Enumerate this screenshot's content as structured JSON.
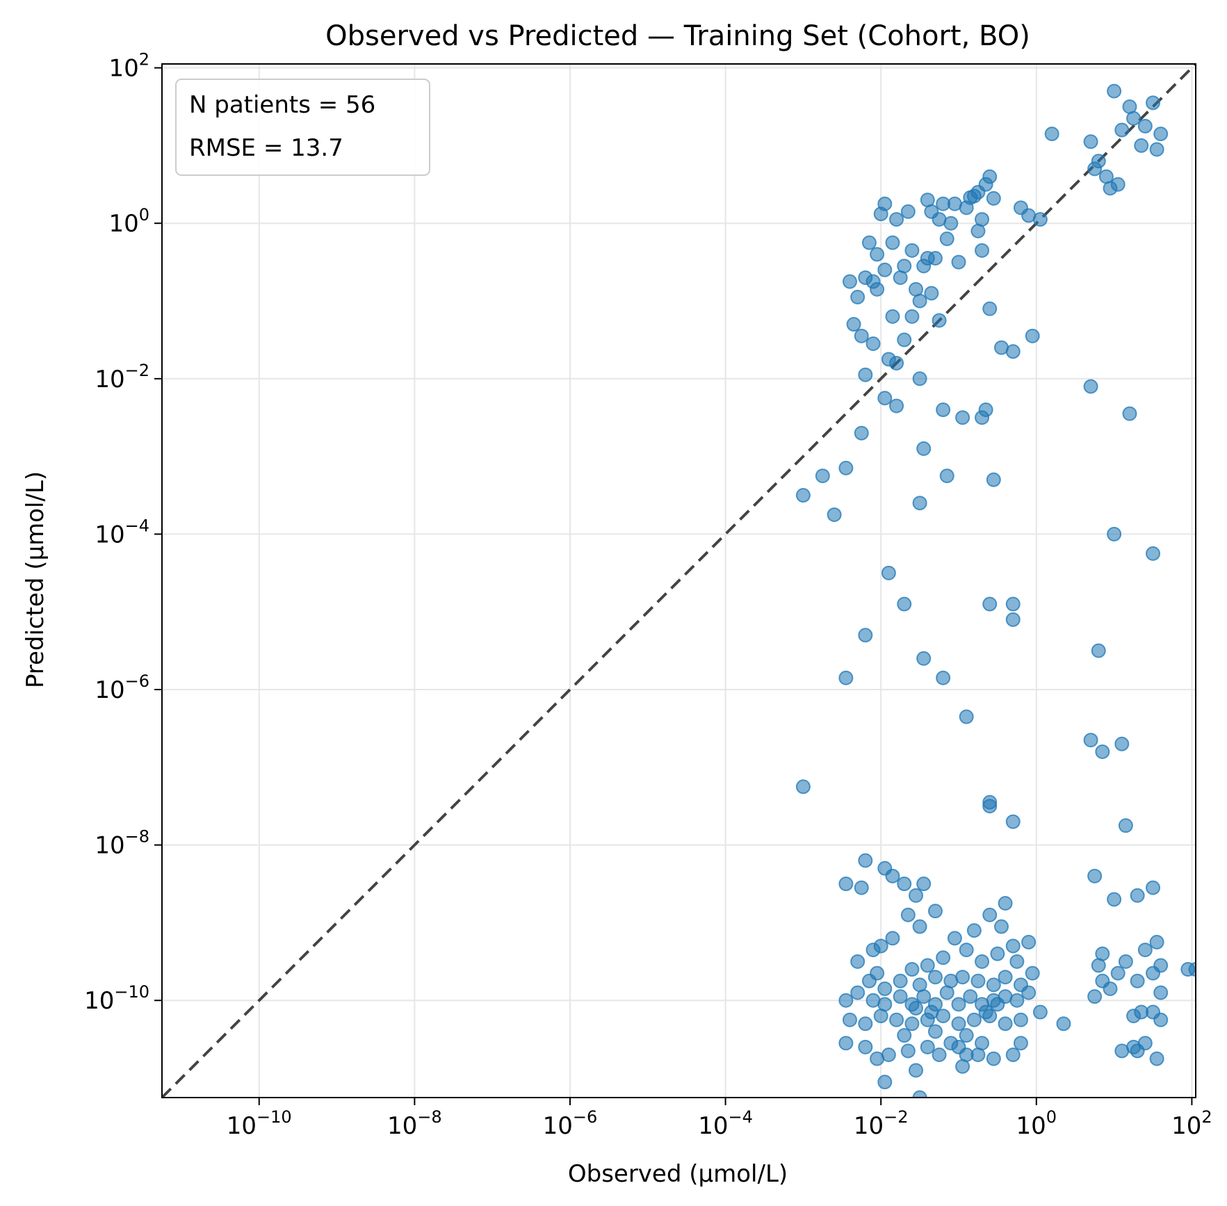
{
  "chart_data": {
    "type": "scatter",
    "title": "Observed vs Predicted — Training Set (Cohort, BO)",
    "xlabel": "Observed (µmol/L)",
    "ylabel": "Predicted (µmol/L)",
    "xscale": "log",
    "yscale": "log",
    "xlim_exp": [
      -11.25,
      2.05
    ],
    "ylim_exp": [
      -11.25,
      2.05
    ],
    "x_ticks_exp": [
      -10,
      -8,
      -6,
      -4,
      -2,
      0,
      2
    ],
    "y_ticks_exp": [
      -10,
      -8,
      -6,
      -4,
      -2,
      0,
      2
    ],
    "grid": true,
    "reference_line": "y = x",
    "point_color": "#1f77b4",
    "reference_line_color": "#444444",
    "annotation": {
      "line1": "N patients = 56",
      "line2": "RMSE = 13.7",
      "placement": "top-left"
    },
    "series": [
      {
        "comment_units": "points are [log10(observed), log10(predicted)]",
        "points": [
          [
            -2.0,
            0.12
          ],
          [
            -1.95,
            0.25
          ],
          [
            -1.8,
            0.05
          ],
          [
            -2.1,
            -0.75
          ],
          [
            -1.7,
            -0.55
          ],
          [
            -2.15,
            -0.25
          ],
          [
            -2.25,
            -1.45
          ],
          [
            -1.85,
            -1.2
          ],
          [
            -1.55,
            -0.85
          ],
          [
            -1.5,
            -1.0
          ],
          [
            -1.4,
            0.3
          ],
          [
            -1.2,
            0.25
          ],
          [
            -0.85,
            0.33
          ],
          [
            -0.8,
            0.35
          ],
          [
            -0.7,
            0.05
          ],
          [
            -0.55,
            0.32
          ],
          [
            -0.75,
            0.4
          ],
          [
            -0.6,
            0.6
          ],
          [
            -0.65,
            0.5
          ],
          [
            -0.9,
            0.2
          ],
          [
            -1.3,
            -0.45
          ],
          [
            -1.1,
            0.0
          ],
          [
            -1.35,
            0.15
          ],
          [
            -0.6,
            -1.1
          ],
          [
            -0.2,
            0.2
          ],
          [
            -0.1,
            0.1
          ],
          [
            0.05,
            0.05
          ],
          [
            0.2,
            1.15
          ],
          [
            -0.3,
            -1.65
          ],
          [
            -0.05,
            -1.45
          ],
          [
            1.0,
            1.7
          ],
          [
            1.2,
            1.5
          ],
          [
            1.4,
            1.25
          ],
          [
            1.6,
            1.15
          ],
          [
            0.8,
            0.8
          ],
          [
            0.9,
            0.6
          ],
          [
            1.5,
            1.55
          ],
          [
            1.35,
            1.0
          ],
          [
            0.7,
            1.05
          ],
          [
            0.95,
            0.45
          ],
          [
            1.1,
            1.2
          ],
          [
            1.25,
            1.35
          ],
          [
            1.55,
            0.95
          ],
          [
            1.05,
            0.5
          ],
          [
            0.75,
            0.7
          ],
          [
            -2.4,
            -0.75
          ],
          [
            -2.05,
            -0.85
          ],
          [
            -1.95,
            -0.6
          ],
          [
            -2.35,
            -1.3
          ],
          [
            -1.7,
            -1.5
          ],
          [
            -1.9,
            -1.75
          ],
          [
            -1.6,
            -1.2
          ],
          [
            -1.8,
            -1.8
          ],
          [
            -1.25,
            -1.25
          ],
          [
            -1.35,
            -0.9
          ],
          [
            -2.1,
            -1.55
          ],
          [
            -1.75,
            -0.7
          ],
          [
            -1.45,
            -0.55
          ],
          [
            -1.6,
            -0.35
          ],
          [
            -1.85,
            -0.25
          ],
          [
            -2.05,
            -0.4
          ],
          [
            -2.3,
            -0.95
          ],
          [
            -1.15,
            -0.2
          ],
          [
            -1.0,
            -0.5
          ],
          [
            -0.75,
            -0.1
          ],
          [
            -0.7,
            -0.35
          ],
          [
            -1.25,
            0.05
          ],
          [
            -1.05,
            0.25
          ],
          [
            -1.4,
            -0.45
          ],
          [
            -2.2,
            -0.7
          ],
          [
            -1.65,
            0.15
          ],
          [
            -2.2,
            -1.95
          ],
          [
            -2.25,
            -2.7
          ],
          [
            -1.95,
            -2.25
          ],
          [
            -1.8,
            -2.35
          ],
          [
            -1.5,
            -2.0
          ],
          [
            -1.2,
            -2.4
          ],
          [
            -0.7,
            -2.5
          ],
          [
            -0.65,
            -2.4
          ],
          [
            -0.55,
            -3.3
          ],
          [
            -2.45,
            -3.15
          ],
          [
            -1.45,
            -2.9
          ],
          [
            -1.5,
            -3.6
          ],
          [
            -1.15,
            -3.25
          ],
          [
            -0.45,
            -1.6
          ],
          [
            -0.95,
            -2.5
          ],
          [
            0.7,
            -2.1
          ],
          [
            1.2,
            -2.45
          ],
          [
            -3.0,
            -3.5
          ],
          [
            -2.6,
            -3.75
          ],
          [
            -2.75,
            -3.25
          ],
          [
            1.0,
            -4.0
          ],
          [
            1.5,
            -4.25
          ],
          [
            -1.9,
            -4.5
          ],
          [
            -1.7,
            -4.9
          ],
          [
            -2.2,
            -5.3
          ],
          [
            -1.45,
            -5.6
          ],
          [
            -1.2,
            -5.85
          ],
          [
            -2.45,
            -5.85
          ],
          [
            -0.9,
            -6.35
          ],
          [
            -0.6,
            -4.9
          ],
          [
            -0.3,
            -4.9
          ],
          [
            -0.3,
            -5.1
          ],
          [
            0.8,
            -5.5
          ],
          [
            0.7,
            -6.65
          ],
          [
            0.85,
            -6.8
          ],
          [
            1.1,
            -6.7
          ],
          [
            -3.0,
            -7.25
          ],
          [
            -0.6,
            -7.45
          ],
          [
            -0.6,
            -7.5
          ],
          [
            -0.3,
            -7.7
          ],
          [
            1.15,
            -7.75
          ],
          [
            -2.2,
            -8.2
          ],
          [
            -1.95,
            -8.3
          ],
          [
            -2.45,
            -8.5
          ],
          [
            -2.25,
            -8.55
          ],
          [
            -1.85,
            -8.4
          ],
          [
            -1.7,
            -8.5
          ],
          [
            -1.45,
            -8.5
          ],
          [
            -1.55,
            -8.65
          ],
          [
            -1.3,
            -8.85
          ],
          [
            -1.65,
            -8.9
          ],
          [
            -1.5,
            -9.05
          ],
          [
            -1.85,
            -9.2
          ],
          [
            -2.0,
            -9.3
          ],
          [
            -2.1,
            -9.35
          ],
          [
            -2.3,
            -9.5
          ],
          [
            -2.05,
            -9.65
          ],
          [
            -1.6,
            -9.6
          ],
          [
            -1.4,
            -9.55
          ],
          [
            -1.2,
            -9.45
          ],
          [
            -1.75,
            -9.75
          ],
          [
            -1.95,
            -9.85
          ],
          [
            -2.15,
            -9.75
          ],
          [
            -1.5,
            -9.8
          ],
          [
            -1.3,
            -9.7
          ],
          [
            -1.1,
            -9.75
          ],
          [
            -0.95,
            -9.7
          ],
          [
            -0.75,
            -9.75
          ],
          [
            -0.55,
            -9.8
          ],
          [
            -0.4,
            -9.7
          ],
          [
            -0.2,
            -9.8
          ],
          [
            -0.05,
            -9.65
          ],
          [
            -0.7,
            -9.5
          ],
          [
            -0.5,
            -9.4
          ],
          [
            -0.3,
            -9.3
          ],
          [
            -0.1,
            -9.25
          ],
          [
            -0.9,
            -9.35
          ],
          [
            -1.05,
            -9.2
          ],
          [
            -0.8,
            -9.1
          ],
          [
            -0.6,
            -8.9
          ],
          [
            -0.4,
            -8.75
          ],
          [
            -0.25,
            -9.5
          ],
          [
            -0.45,
            -9.05
          ],
          [
            -2.3,
            -9.9
          ],
          [
            -2.45,
            -10.0
          ],
          [
            -2.1,
            -10.0
          ],
          [
            -1.95,
            -10.05
          ],
          [
            -1.75,
            -9.95
          ],
          [
            -1.6,
            -10.05
          ],
          [
            -1.45,
            -9.95
          ],
          [
            -1.3,
            -10.05
          ],
          [
            -1.15,
            -9.9
          ],
          [
            -1.0,
            -10.05
          ],
          [
            -0.85,
            -9.95
          ],
          [
            -0.7,
            -10.05
          ],
          [
            -0.55,
            -10.0
          ],
          [
            -0.4,
            -9.95
          ],
          [
            -0.25,
            -10.0
          ],
          [
            -0.1,
            -9.9
          ],
          [
            -1.55,
            -10.1
          ],
          [
            -1.35,
            -10.15
          ],
          [
            -0.65,
            -10.15
          ],
          [
            -0.5,
            -10.05
          ],
          [
            -2.4,
            -10.25
          ],
          [
            -2.2,
            -10.3
          ],
          [
            -2.0,
            -10.2
          ],
          [
            -1.8,
            -10.25
          ],
          [
            -1.6,
            -10.3
          ],
          [
            -1.4,
            -10.25
          ],
          [
            -1.2,
            -10.2
          ],
          [
            -1.0,
            -10.3
          ],
          [
            -0.8,
            -10.25
          ],
          [
            -0.6,
            -10.2
          ],
          [
            -0.4,
            -10.3
          ],
          [
            -0.2,
            -10.25
          ],
          [
            0.05,
            -10.15
          ],
          [
            0.35,
            -10.3
          ],
          [
            -1.7,
            -10.45
          ],
          [
            -1.3,
            -10.4
          ],
          [
            -0.9,
            -10.45
          ],
          [
            -2.45,
            -10.55
          ],
          [
            -2.2,
            -10.6
          ],
          [
            -2.05,
            -10.75
          ],
          [
            -1.9,
            -10.7
          ],
          [
            -1.65,
            -10.65
          ],
          [
            -1.4,
            -10.6
          ],
          [
            -1.25,
            -10.7
          ],
          [
            -1.0,
            -10.6
          ],
          [
            -0.75,
            -10.7
          ],
          [
            -0.55,
            -10.75
          ],
          [
            -0.3,
            -10.7
          ],
          [
            -0.2,
            -10.55
          ],
          [
            -1.1,
            -10.55
          ],
          [
            -1.55,
            -10.9
          ],
          [
            -0.95,
            -10.85
          ],
          [
            -0.9,
            -10.7
          ],
          [
            -0.7,
            -10.55
          ],
          [
            -1.95,
            -11.05
          ],
          [
            -1.5,
            -11.25
          ],
          [
            0.75,
            -8.4
          ],
          [
            1.0,
            -8.7
          ],
          [
            1.3,
            -8.65
          ],
          [
            1.5,
            -8.55
          ],
          [
            1.55,
            -9.25
          ],
          [
            1.4,
            -9.35
          ],
          [
            1.15,
            -9.5
          ],
          [
            0.85,
            -9.4
          ],
          [
            0.8,
            -9.55
          ],
          [
            1.05,
            -9.65
          ],
          [
            1.3,
            -9.75
          ],
          [
            1.5,
            -9.65
          ],
          [
            1.6,
            -9.55
          ],
          [
            0.85,
            -9.75
          ],
          [
            0.75,
            -9.95
          ],
          [
            0.95,
            -9.85
          ],
          [
            1.6,
            -9.9
          ],
          [
            1.35,
            -10.15
          ],
          [
            1.25,
            -10.2
          ],
          [
            1.5,
            -10.15
          ],
          [
            1.6,
            -10.25
          ],
          [
            1.3,
            -10.65
          ],
          [
            1.25,
            -10.6
          ],
          [
            1.1,
            -10.65
          ],
          [
            1.4,
            -10.55
          ],
          [
            1.55,
            -10.75
          ],
          [
            1.95,
            -9.6
          ],
          [
            2.05,
            -9.6
          ]
        ]
      }
    ]
  }
}
